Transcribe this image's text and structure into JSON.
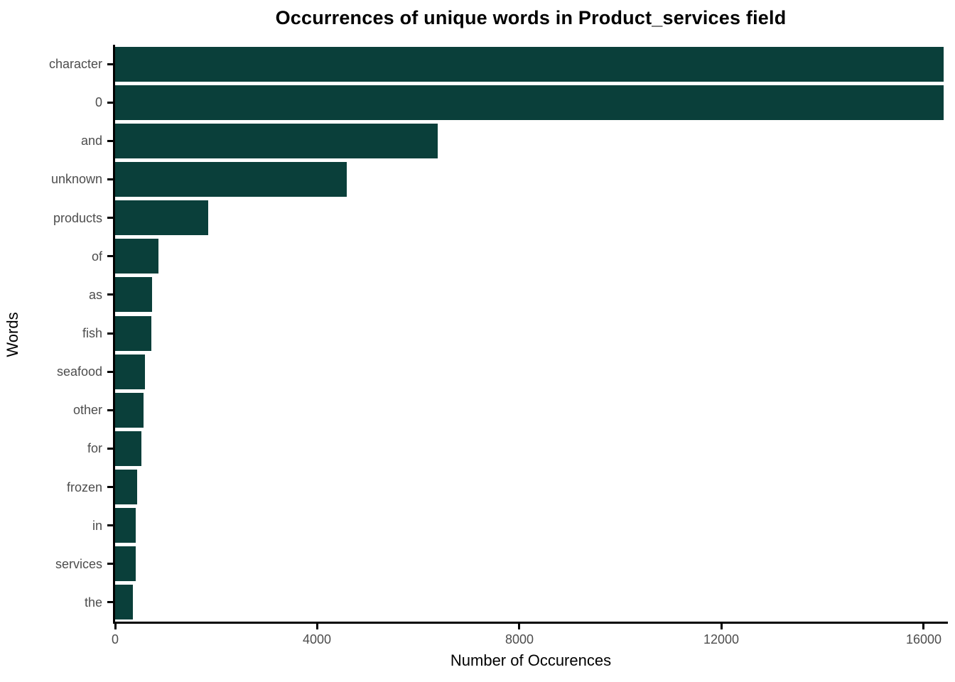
{
  "chart_data": {
    "type": "bar",
    "orientation": "horizontal",
    "title": "Occurrences of unique words in Product_services field",
    "xlabel": "Number of Occurences",
    "ylabel": "Words",
    "categories": [
      "character",
      "0",
      "and",
      "unknown",
      "products",
      "of",
      "as",
      "fish",
      "seafood",
      "other",
      "for",
      "frozen",
      "in",
      "services",
      "the"
    ],
    "values": [
      16400,
      16400,
      6380,
      4590,
      1840,
      860,
      730,
      715,
      590,
      560,
      520,
      435,
      410,
      405,
      350
    ],
    "xticks": [
      0,
      4000,
      8000,
      12000,
      16000
    ],
    "xlim": [
      0,
      16450
    ],
    "bar_color": "#0a3f3a",
    "axis_color": "#000000",
    "tick_label_color": "#4d4d4d",
    "grid": false,
    "legend": "none"
  }
}
